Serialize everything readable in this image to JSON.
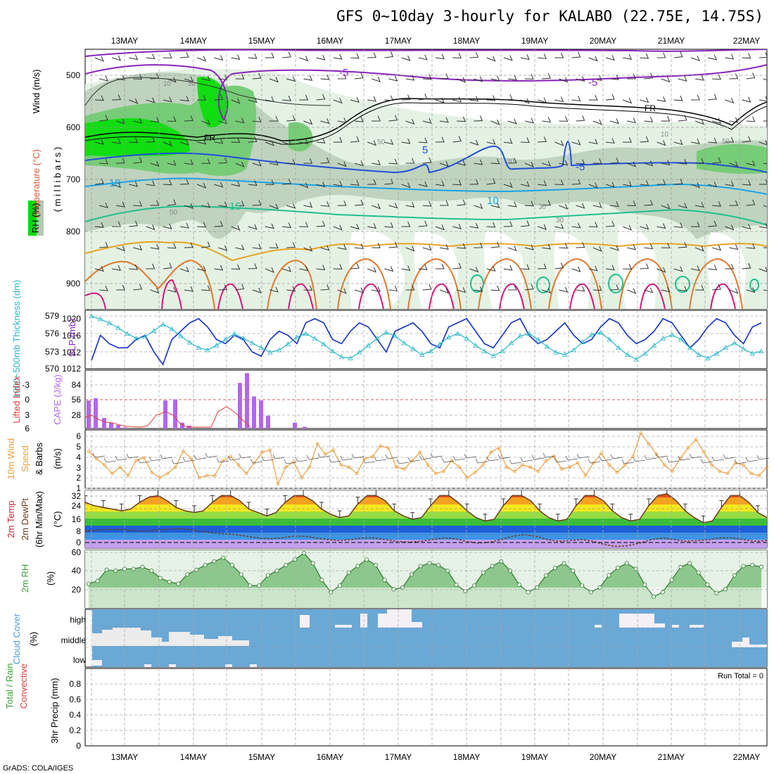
{
  "title": "GFS 0~10day 3-hourly for KALABO (22.75E, 14.75S)",
  "credit": "GrADS: COLA/IGES",
  "run_total": "Run Total = 0",
  "dates": [
    "13MAY",
    "14MAY",
    "15MAY",
    "16MAY",
    "17MAY",
    "18MAY",
    "19MAY",
    "20MAY",
    "21MAY",
    "22MAY"
  ],
  "colors": {
    "rh_green": "#00dc00",
    "rh_mid": "#6ccf6c",
    "rh_light": "#dff0df",
    "rh_gray": "#b4c8b4",
    "temp_purple": "#8a22bb",
    "temp_blue": "#1f4fd8",
    "temp_lightblue": "#1aa3e6",
    "temp_teal": "#1fbf8f",
    "temp_orange": "#e8a21f",
    "temp_dorange": "#e2772a",
    "temp_magenta": "#d6147a",
    "freeze": "#000000",
    "slp": "#1430c8",
    "thickness": "#2ab8c8",
    "cape": "#b266ee",
    "lifted": "#e03c3c",
    "wind_speed": "#e8a040",
    "rh2m": "#3ca03c",
    "cloud": "#6aa8d6",
    "cloud_gap": "#f0eef4"
  },
  "panels": {
    "upper": {
      "ylabels": [
        {
          "text": "Wind (m/s)",
          "color": "#000000"
        },
        {
          "text": "Temperature (°C)",
          "color": "#e05a3a"
        },
        {
          "text": "RH (%)",
          "color": "#000000"
        },
        {
          "text": "( m i l l i b a r s )",
          "color": "#000000"
        }
      ],
      "yticks": [
        "500",
        "600",
        "700",
        "800",
        "900"
      ],
      "labels": [
        "-5",
        "-5",
        "FR",
        "FR",
        "5",
        "-5",
        "-10",
        "10",
        "15",
        "50",
        "30",
        "30",
        "10",
        "50",
        "30",
        "50",
        "10",
        "50"
      ]
    },
    "slp": {
      "ylabel_left": "1000~500mb Thickness (dm)",
      "ylabel_right": "SLP (mb)",
      "left_ticks": [
        "579",
        "576",
        "573",
        "570"
      ],
      "right_ticks": [
        "1020",
        "1016",
        "1012",
        "1012"
      ]
    },
    "cape": {
      "ylabel_left": "Lifted Index",
      "ylabel_right": "CAPE (J/kg)",
      "left_ticks": [
        "-3",
        "0",
        "3",
        "6"
      ],
      "right_ticks": [
        "84",
        "56",
        "28"
      ]
    },
    "wind": {
      "ylabel_1": "10m Wind",
      "ylabel_2": "Speed",
      "ylabel_3": "& Barbs",
      "ylabel_unit": "(m/s)",
      "ticks": [
        "6",
        "5",
        "4",
        "3",
        "2",
        "1"
      ]
    },
    "temp": {
      "ylabel_1": "2m Temp",
      "ylabel_2": "2m DewPt",
      "ylabel_3": "(6hr Min/Max)",
      "ylabel_unit": "(°C)",
      "ticks": [
        "32",
        "24",
        "16",
        "8",
        "0"
      ]
    },
    "rh": {
      "ylabel": "2m RH",
      "ylabel_unit": "(%)",
      "ticks": [
        "60",
        "40",
        "20"
      ]
    },
    "cloud": {
      "ylabel": "Cloud Cover",
      "ylabel_unit": "(%)",
      "ticks": [
        "high",
        "middle",
        "low"
      ]
    },
    "precip": {
      "ylabel_1": "Total / Rain",
      "ylabel_2": "Convective",
      "ylabel_unit": "3hr Precip (mm)",
      "ticks": [
        "0.8",
        "0.6",
        "0.4",
        "0.2",
        "0"
      ]
    }
  },
  "chart_data": [
    {
      "type": "line",
      "name": "slp-thickness",
      "x_unit": "3-hourly steps from 13MAY",
      "series": [
        {
          "name": "SLP (mb)",
          "values": [
            1010,
            1016,
            1014,
            1013,
            1013,
            1015,
            1016,
            1012,
            1009,
            1015,
            1017,
            1019,
            1020,
            1018,
            1015,
            1014,
            1016,
            1015,
            1012,
            1011,
            1015,
            1017,
            1016,
            1014,
            1019,
            1020,
            1019,
            1015,
            1014,
            1017,
            1019,
            1018,
            1015,
            1012,
            1017,
            1018,
            1019,
            1017,
            1014,
            1013,
            1018,
            1019,
            1020,
            1017,
            1014,
            1013,
            1016,
            1019,
            1020,
            1016,
            1014,
            1015,
            1017,
            1019,
            1016,
            1014,
            1015,
            1018,
            1020,
            1019,
            1016,
            1014,
            1015,
            1017,
            1020,
            1019,
            1016,
            1013,
            1015,
            1018,
            1020,
            1019,
            1016,
            1014,
            1018,
            1019
          ]
        },
        {
          "name": "1000~500mb Thickness (dm)",
          "values": [
            579,
            578.5,
            577.8,
            577,
            576,
            575.2,
            575.5,
            576.5,
            577.6,
            576.8,
            575.6,
            574.5,
            573.6,
            573.2,
            574,
            575,
            576,
            575.2,
            574.4,
            573.6,
            572.8,
            573.2,
            574.2,
            575.4,
            576,
            575.2,
            574.2,
            573,
            572,
            571.8,
            572.8,
            574,
            575.2,
            576.2,
            575.6,
            574.4,
            573.4,
            572.4,
            573,
            574.2,
            575.4,
            576,
            575.2,
            574,
            573,
            572.2,
            573,
            574.4,
            575.6,
            576,
            575,
            573.8,
            572.8,
            572.4,
            573.2,
            574.6,
            575.8,
            576.2,
            575,
            573.6,
            572.4,
            571.6,
            572.6,
            574,
            575.2,
            575.8,
            575,
            573.6,
            572.4,
            571.8,
            572.6,
            573.6,
            574.4,
            573.4,
            572.6,
            573
          ]
        }
      ]
    },
    {
      "type": "bar",
      "name": "cape",
      "series": [
        {
          "name": "CAPE (J/kg)",
          "values": [
            45,
            50,
            20,
            12,
            8,
            0,
            0,
            0,
            0,
            0,
            0,
            45,
            48,
            30,
            8,
            5,
            0,
            0,
            0,
            0,
            0,
            0,
            0,
            75,
            80,
            55,
            48,
            22,
            0,
            0,
            0,
            0,
            0,
            10,
            3,
            0
          ]
        }
      ]
    },
    {
      "type": "line",
      "name": "wind-speed",
      "series": [
        {
          "name": "10m Wind Speed (m/s)",
          "values": [
            4.5,
            3.8,
            3.2,
            2.4,
            3,
            2.2,
            3.6,
            3.9,
            2.5,
            2,
            2.4,
            3,
            4.5,
            3.8,
            2,
            2.2,
            2.2,
            3.6,
            4,
            3.2,
            2.4,
            3.4,
            4.4,
            4.6,
            1.4,
            3,
            3.5,
            2,
            3,
            5.2,
            4.2,
            4.6,
            3.2,
            3,
            2.4,
            3.8,
            4,
            5,
            4.8,
            3,
            2.8,
            3.6,
            4.4,
            3.2,
            2.4,
            2.6,
            3.6,
            3,
            2,
            2.5,
            3.2,
            4.4,
            4.8,
            3,
            2.6,
            3.2,
            3,
            2.6,
            3.6,
            4,
            2.8,
            3,
            3.4,
            2.2,
            3.4,
            4.3,
            3.2,
            2.5,
            3.2,
            4,
            6.2,
            5.2,
            4.2,
            3.2,
            2.6,
            3.8,
            4.8,
            5.6,
            4.4,
            3.2,
            2.6,
            2.4,
            3.4,
            3.2,
            2.4,
            2.2,
            3
          ]
        }
      ]
    },
    {
      "type": "area",
      "name": "temperature",
      "series": [
        {
          "name": "2m Temp (°C)",
          "values": [
            26,
            24,
            23,
            22,
            21,
            22,
            26,
            29,
            30,
            27,
            23,
            21,
            20,
            21,
            26,
            30,
            30,
            27,
            22,
            20,
            18,
            20,
            26,
            30,
            30,
            27,
            22,
            19,
            17,
            18,
            25,
            30,
            30,
            27,
            21,
            18,
            16,
            17,
            24,
            30,
            30,
            26,
            21,
            17,
            15,
            16,
            24,
            30,
            30,
            27,
            21,
            17,
            15,
            16,
            24,
            30,
            30,
            27,
            21,
            17,
            15,
            16,
            24,
            30,
            31,
            27,
            21,
            17,
            14,
            15,
            23,
            30,
            30,
            26,
            20,
            17
          ]
        },
        {
          "name": "2m DewPt (°C)",
          "values": [
            9,
            9.5,
            10,
            10,
            9.5,
            9,
            9.5,
            10,
            10.5,
            10,
            9,
            8,
            7.5,
            7,
            6,
            5,
            4.5,
            5,
            6,
            6,
            5,
            4,
            3.5,
            4,
            5,
            5,
            4,
            3,
            2.5,
            3,
            4,
            5,
            4.5,
            3,
            2,
            2.5,
            4,
            6,
            7,
            6,
            4,
            3,
            3.5,
            4,
            3,
            1,
            0,
            0.5,
            2,
            4,
            5,
            4,
            3,
            3.5,
            4,
            5,
            5,
            4,
            3,
            3.5
          ]
        }
      ]
    },
    {
      "type": "area",
      "name": "rh2m",
      "series": [
        {
          "name": "2m RH (%)",
          "values": [
            26,
            29,
            41,
            40,
            42,
            42,
            44,
            40,
            32,
            28,
            26,
            36,
            41,
            46,
            50,
            54,
            46,
            36,
            24,
            24,
            35,
            40,
            46,
            52,
            59,
            48,
            30,
            17,
            24,
            38,
            45,
            52,
            46,
            30,
            20,
            22,
            36,
            45,
            48,
            46,
            40,
            25,
            18,
            24,
            38,
            45,
            50,
            40,
            25,
            17,
            22,
            35,
            43,
            48,
            40,
            24,
            17,
            22,
            35,
            43,
            48,
            42,
            25,
            12,
            17,
            30,
            44,
            48,
            38,
            25,
            16,
            20,
            35,
            45,
            46,
            44
          ]
        }
      ]
    },
    {
      "type": "area",
      "name": "cloud-cover",
      "series": [
        {
          "name": "Cloud Cover (%)",
          "values": [
            0,
            0,
            0,
            0,
            0,
            0,
            0,
            0,
            0,
            0,
            0,
            0,
            0,
            0,
            0,
            0,
            0,
            0,
            0,
            0,
            0,
            0,
            0,
            0,
            0,
            0,
            0,
            0,
            0,
            0,
            0,
            0,
            0,
            0,
            0,
            0,
            0,
            0,
            0,
            0
          ]
        }
      ]
    },
    {
      "type": "bar",
      "name": "precip",
      "ylim": [
        0,
        1
      ],
      "series": [
        {
          "name": "3hr Precip (mm)",
          "values": [
            0,
            0,
            0,
            0,
            0,
            0,
            0,
            0,
            0,
            0
          ]
        }
      ]
    }
  ]
}
